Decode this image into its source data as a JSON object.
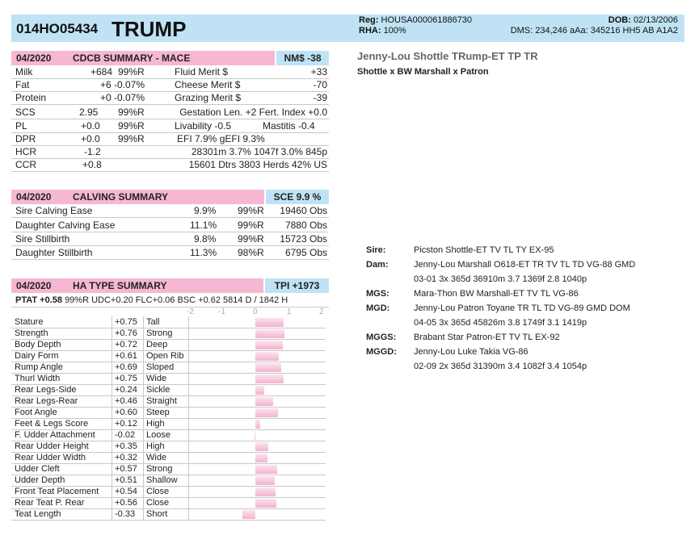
{
  "header": {
    "id": "014HO05434",
    "name": "TRUMP",
    "reg_label": "Reg:",
    "reg": "HOUSA000061886730",
    "dob_label": "DOB:",
    "dob": "02/13/2006",
    "rha_label": "RHA:",
    "rha": "100%",
    "dms": "DMS: 234,246  aAa: 345216  HH5  AB A1A2"
  },
  "cdcb": {
    "date": "04/2020",
    "title": "CDCB SUMMARY - MACE",
    "badge": "NM$ -38",
    "rows": [
      {
        "trait": "Milk",
        "value": "+684",
        "rel": "99%R",
        "trait2": "Fluid Merit $",
        "value2": "+33"
      },
      {
        "trait": "Fat",
        "value": "+6",
        "rel": "-0.07%",
        "trait2": "Cheese Merit $",
        "value2": "-70"
      },
      {
        "trait": "Protein",
        "value": "+0",
        "rel": "-0.07%",
        "trait2": "Grazing Merit $",
        "value2": "-39"
      }
    ],
    "scs": {
      "trait": "SCS",
      "value": "2.95",
      "rel": "99%R",
      "extra": "Gestation Len. +2  Fert. Index +0.0"
    },
    "pl": {
      "trait": "PL",
      "value": "+0.0",
      "rel": "99%R",
      "extra1": "Livability  -0.5",
      "extra2": "Mastitis  -0.4"
    },
    "dpr": {
      "trait": "DPR",
      "value": "+0.0",
      "rel": "99%R",
      "extra": "EFI  7.9%  gEFI  9.3%"
    },
    "hcr": {
      "trait": "HCR",
      "value": "-1.2",
      "extra": "28301m  3.7%  1047f  3.0%  845p"
    },
    "ccr": {
      "trait": "CCR",
      "value": "+0.8",
      "extra": "15601 Dtrs  3803 Herds  42% US"
    }
  },
  "calving": {
    "date": "04/2020",
    "title": "CALVING SUMMARY",
    "badge": "SCE 9.9 %",
    "rows": [
      {
        "trait": "Sire Calving Ease",
        "value": "9.9%",
        "rel": "99%R",
        "obs": "19460 Obs"
      },
      {
        "trait": "Daughter Calving Ease",
        "value": "11.1%",
        "rel": "99%R",
        "obs": "7880 Obs"
      },
      {
        "trait": "Sire Stillbirth",
        "value": "9.8%",
        "rel": "99%R",
        "obs": "15723 Obs"
      },
      {
        "trait": "Daughter Stillbirth",
        "value": "11.3%",
        "rel": "98%R",
        "obs": "6795 Obs"
      }
    ]
  },
  "type": {
    "date": "04/2020",
    "title": "HA TYPE SUMMARY",
    "badge": "TPI +1973",
    "ptat_label": "PTAT",
    "ptat": "+0.58",
    "ptat_rest": "99%R  UDC+0.20  FLC+0.06  BSC +0.62  5814 D /  1842 H",
    "scale": [
      "-2",
      "-1",
      "0",
      "1",
      "2"
    ],
    "traits": [
      {
        "name": "Stature",
        "value": "+0.75",
        "desc": "Tall",
        "num": 0.75
      },
      {
        "name": "Strength",
        "value": "+0.76",
        "desc": "Strong",
        "num": 0.76
      },
      {
        "name": "Body Depth",
        "value": "+0.72",
        "desc": "Deep",
        "num": 0.72
      },
      {
        "name": "Dairy Form",
        "value": "+0.61",
        "desc": "Open Rib",
        "num": 0.61
      },
      {
        "name": "Rump Angle",
        "value": "+0.69",
        "desc": "Sloped",
        "num": 0.69
      },
      {
        "name": "Thurl Width",
        "value": "+0.75",
        "desc": "Wide",
        "num": 0.75
      },
      {
        "name": "Rear Legs-Side",
        "value": "+0.24",
        "desc": "Sickle",
        "num": 0.24
      },
      {
        "name": "Rear Legs-Rear",
        "value": "+0.46",
        "desc": "Straight",
        "num": 0.46
      },
      {
        "name": "Foot Angle",
        "value": "+0.60",
        "desc": "Steep",
        "num": 0.6
      },
      {
        "name": "Feet & Legs Score",
        "value": "+0.12",
        "desc": "High",
        "num": 0.12
      },
      {
        "name": "F. Udder Attachment",
        "value": "-0.02",
        "desc": "Loose",
        "num": -0.02
      },
      {
        "name": "Rear Udder Height",
        "value": "+0.35",
        "desc": "High",
        "num": 0.35
      },
      {
        "name": "Rear Udder Width",
        "value": "+0.32",
        "desc": "Wide",
        "num": 0.32
      },
      {
        "name": "Udder Cleft",
        "value": "+0.57",
        "desc": "Strong",
        "num": 0.57
      },
      {
        "name": "Udder Depth",
        "value": "+0.51",
        "desc": "Shallow",
        "num": 0.51
      },
      {
        "name": "Front Teat Placement",
        "value": "+0.54",
        "desc": "Close",
        "num": 0.54
      },
      {
        "name": "Rear Teat P. Rear",
        "value": "+0.56",
        "desc": "Close",
        "num": 0.56
      },
      {
        "name": "Teat Length",
        "value": "-0.33",
        "desc": "Short",
        "num": -0.33
      }
    ]
  },
  "bull": {
    "full_name": "Jenny-Lou Shottle TRump-ET  TP TR",
    "lineage": "Shottle x BW Marshall x Patron"
  },
  "pedigree": {
    "sire_label": "Sire:",
    "sire": "Picston Shottle-ET TV TL TY EX-95",
    "dam_label": "Dam:",
    "dam": "Jenny-Lou Marshall O618-ET TR TV TL TD VG-88 GMD",
    "dam_record": "03-01 3x 365d 36910m 3.7 1369f 2.8 1040p",
    "mgs_label": "MGS:",
    "mgs": "Mara-Thon BW Marshall-ET TV TL VG-86",
    "mgd_label": "MGD:",
    "mgd": "Jenny-Lou Patron Toyane TR TL TD VG-89 GMD DOM",
    "mgd_record": "04-05 3x 365d 45826m 3.8 1749f 3.1 1419p",
    "mggs_label": "MGGS:",
    "mggs": "Brabant Star Patron-ET TV TL EX-92",
    "mggd_label": "MGGD:",
    "mggd": "Jenny-Lou Luke Takia VG-86",
    "mggd_record": "02-09 2x 365d 31390m 3.4 1082f 3.4 1054p"
  },
  "colors": {
    "pink": "#f6b7d3",
    "blue": "#bfe3f5"
  }
}
